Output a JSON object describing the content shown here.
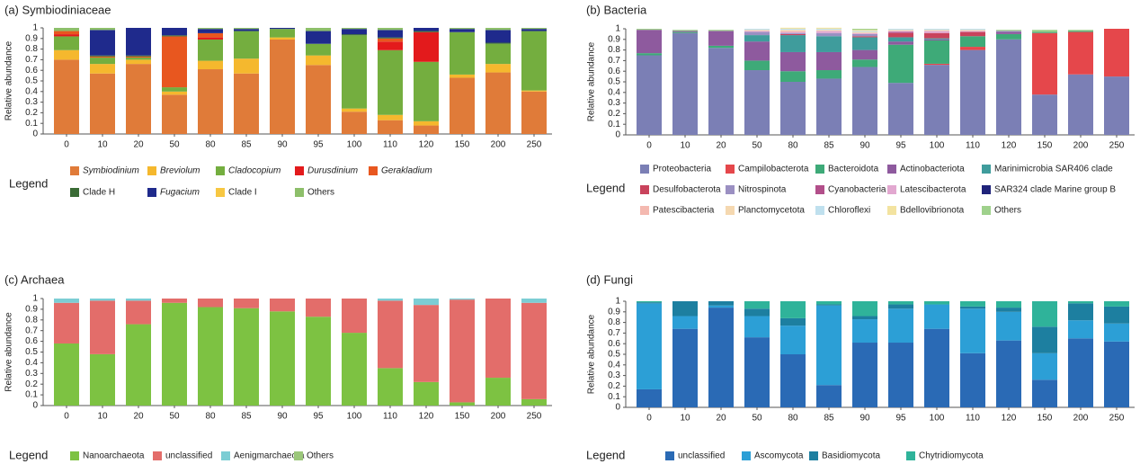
{
  "chart_data": [
    {
      "type": "bar",
      "stacked": true,
      "title": "(a) Symbiodiniaceae",
      "y_label": "Relative abundance",
      "legend_title": "Legend",
      "categories": [
        "0",
        "10",
        "20",
        "50",
        "80",
        "85",
        "90",
        "95",
        "100",
        "110",
        "120",
        "150",
        "200",
        "250"
      ],
      "ylim": [
        0,
        1
      ],
      "yticks": [
        0,
        0.1,
        0.2,
        0.3,
        0.4,
        0.5,
        0.6,
        0.7,
        0.8,
        0.9,
        1
      ],
      "series": [
        {
          "name": "Symbiodinium",
          "italic": true,
          "color": "#e07b39",
          "values": [
            0.7,
            0.57,
            0.66,
            0.37,
            0.61,
            0.57,
            0.89,
            0.65,
            0.21,
            0.13,
            0.08,
            0.53,
            0.58,
            0.4
          ]
        },
        {
          "name": "Breviolum",
          "italic": true,
          "color": "#f5b82e",
          "values": [
            0.09,
            0.09,
            0.04,
            0.03,
            0.08,
            0.14,
            0.02,
            0.09,
            0.03,
            0.05,
            0.04,
            0.03,
            0.08,
            0.01
          ]
        },
        {
          "name": "Cladocopium",
          "italic": true,
          "color": "#74ae3f",
          "values": [
            0.13,
            0.06,
            0.02,
            0.04,
            0.2,
            0.26,
            0.08,
            0.11,
            0.69,
            0.61,
            0.56,
            0.4,
            0.19,
            0.56
          ]
        },
        {
          "name": "Durusdinium",
          "italic": true,
          "color": "#e31a1c",
          "values": [
            0.02,
            0,
            0,
            0,
            0.02,
            0,
            0,
            0,
            0,
            0.08,
            0.28,
            0,
            0,
            0
          ]
        },
        {
          "name": "Gerakladium",
          "italic": true,
          "color": "#e8571f",
          "values": [
            0.03,
            0.01,
            0.01,
            0.48,
            0.04,
            0,
            0,
            0,
            0,
            0.03,
            0,
            0,
            0,
            0
          ]
        },
        {
          "name": "Clade H",
          "italic": false,
          "color": "#3a6b35",
          "values": [
            0,
            0.01,
            0.01,
            0.01,
            0,
            0,
            0,
            0,
            0.01,
            0.01,
            0.01,
            0,
            0.01,
            0
          ]
        },
        {
          "name": "Fugacium",
          "italic": true,
          "color": "#1f2a8c",
          "values": [
            0,
            0.24,
            0.26,
            0.07,
            0.04,
            0.02,
            0.01,
            0.12,
            0.05,
            0.07,
            0.03,
            0.03,
            0.12,
            0.02
          ]
        },
        {
          "name": "Clade I",
          "italic": false,
          "color": "#f7c742",
          "values": [
            0,
            0,
            0,
            0,
            0,
            0,
            0,
            0,
            0,
            0,
            0,
            0,
            0,
            0
          ]
        },
        {
          "name": "Others",
          "italic": false,
          "color": "#8dbf6a",
          "values": [
            0.03,
            0.02,
            0,
            0,
            0.01,
            0.01,
            0,
            0.03,
            0.01,
            0.02,
            0,
            0.01,
            0.02,
            0.01
          ]
        }
      ]
    },
    {
      "type": "bar",
      "stacked": true,
      "title": "(b) Bacteria",
      "y_label": "Relative abundance",
      "legend_title": "Legend",
      "categories": [
        "0",
        "10",
        "20",
        "50",
        "80",
        "85",
        "90",
        "95",
        "100",
        "110",
        "120",
        "150",
        "200",
        "250"
      ],
      "ylim": [
        0,
        1
      ],
      "yticks": [
        0,
        0.1,
        0.2,
        0.3,
        0.4,
        0.5,
        0.6,
        0.7,
        0.8,
        0.9,
        1
      ],
      "series": [
        {
          "name": "Proteobacteria",
          "color": "#7b7fb5",
          "values": [
            0.75,
            0.96,
            0.82,
            0.61,
            0.5,
            0.53,
            0.64,
            0.49,
            0.66,
            0.8,
            0.9,
            0.38,
            0.57,
            0.55
          ]
        },
        {
          "name": "Campilobacterota",
          "color": "#e5474b",
          "values": [
            0,
            0,
            0,
            0,
            0,
            0,
            0,
            0,
            0.01,
            0.03,
            0,
            0.58,
            0.4,
            0.45
          ]
        },
        {
          "name": "Bacteroidota",
          "color": "#3eaa78",
          "values": [
            0.02,
            0.01,
            0.02,
            0.09,
            0.1,
            0.08,
            0.07,
            0.36,
            0.22,
            0.1,
            0.05,
            0.01,
            0.01,
            0
          ]
        },
        {
          "name": "Actinobacteriota",
          "color": "#8e5a9e",
          "values": [
            0.22,
            0.01,
            0.14,
            0.18,
            0.18,
            0.17,
            0.09,
            0.03,
            0.01,
            0,
            0.02,
            0,
            0,
            0
          ]
        },
        {
          "name": "Marinimicrobia SAR406 clade",
          "color": "#3f9c9c",
          "values": [
            0,
            0,
            0,
            0.06,
            0.16,
            0.15,
            0.12,
            0.04,
            0.01,
            0,
            0,
            0,
            0,
            0
          ]
        },
        {
          "name": "Desulfobacterota",
          "color": "#c9435c",
          "values": [
            0,
            0,
            0,
            0,
            0.01,
            0,
            0.01,
            0.04,
            0.05,
            0.04,
            0,
            0,
            0,
            0
          ]
        },
        {
          "name": "Nitrospinota",
          "color": "#9b90c2",
          "values": [
            0,
            0,
            0,
            0.03,
            0.01,
            0.03,
            0.02,
            0,
            0,
            0,
            0.01,
            0,
            0,
            0
          ]
        },
        {
          "name": "Cyanobacteria",
          "color": "#b24f8a",
          "values": [
            0,
            0,
            0,
            0,
            0,
            0,
            0,
            0.01,
            0,
            0,
            0,
            0,
            0,
            0
          ]
        },
        {
          "name": "Latescibacterota",
          "color": "#e2a8d0",
          "values": [
            0,
            0,
            0,
            0.01,
            0.01,
            0.02,
            0.01,
            0.01,
            0.02,
            0.01,
            0,
            0,
            0,
            0
          ]
        },
        {
          "name": "SAR324 clade Marine group B",
          "color": "#1f237a",
          "values": [
            0,
            0,
            0,
            0,
            0,
            0,
            0,
            0,
            0,
            0,
            0,
            0,
            0,
            0
          ]
        },
        {
          "name": "Patescibacteria",
          "color": "#f4b9b0",
          "values": [
            0,
            0,
            0,
            0,
            0.01,
            0,
            0,
            0,
            0,
            0,
            0,
            0,
            0,
            0
          ]
        },
        {
          "name": "Planctomycetota",
          "color": "#f5d8b0",
          "values": [
            0,
            0,
            0,
            0.01,
            0.01,
            0.01,
            0.01,
            0.01,
            0.01,
            0.01,
            0,
            0,
            0,
            0
          ]
        },
        {
          "name": "Chloroflexi",
          "color": "#bfe0ee",
          "values": [
            0,
            0,
            0,
            0.01,
            0.01,
            0.01,
            0.01,
            0.01,
            0.01,
            0.01,
            0,
            0,
            0,
            0
          ]
        },
        {
          "name": "Bdellovibrionota",
          "color": "#f3e3a0",
          "values": [
            0,
            0,
            0,
            0,
            0.01,
            0.01,
            0.01,
            0,
            0,
            0,
            0,
            0,
            0,
            0
          ]
        },
        {
          "name": "Others",
          "color": "#9fd18c",
          "values": [
            0.01,
            0.01,
            0.01,
            0,
            0,
            0,
            0.01,
            0,
            0,
            0,
            0.01,
            0.02,
            0.01,
            0
          ]
        }
      ]
    },
    {
      "type": "bar",
      "stacked": true,
      "title": "(c) Archaea",
      "y_label": "Relative abundance",
      "legend_title": "Legend",
      "categories": [
        "0",
        "10",
        "20",
        "50",
        "80",
        "85",
        "90",
        "95",
        "100",
        "110",
        "120",
        "150",
        "200",
        "250"
      ],
      "ylim": [
        0,
        1
      ],
      "yticks": [
        0,
        0.1,
        0.2,
        0.3,
        0.4,
        0.5,
        0.6,
        0.7,
        0.8,
        0.9,
        1
      ],
      "series": [
        {
          "name": "Nanoarchaeota",
          "color": "#7dc242",
          "values": [
            0.58,
            0.48,
            0.76,
            0.96,
            0.92,
            0.91,
            0.88,
            0.83,
            0.68,
            0.35,
            0.22,
            0.03,
            0.26,
            0.06
          ]
        },
        {
          "name": "unclassified",
          "color": "#e36d6a",
          "values": [
            0.38,
            0.5,
            0.22,
            0.04,
            0.08,
            0.09,
            0.12,
            0.17,
            0.32,
            0.63,
            0.72,
            0.96,
            0.74,
            0.9
          ]
        },
        {
          "name": "Aenigmarchaeota",
          "color": "#7ccdd4",
          "values": [
            0.04,
            0.02,
            0.02,
            0,
            0,
            0,
            0,
            0,
            0,
            0.02,
            0.06,
            0.01,
            0,
            0.04
          ]
        },
        {
          "name": "Others",
          "color": "#9bc77a",
          "values": [
            0,
            0,
            0,
            0,
            0,
            0,
            0,
            0,
            0,
            0,
            0,
            0,
            0,
            0
          ]
        }
      ]
    },
    {
      "type": "bar",
      "stacked": true,
      "title": "(d) Fungi",
      "y_label": "Relative abundance",
      "legend_title": "Legend",
      "categories": [
        "0",
        "10",
        "20",
        "50",
        "80",
        "85",
        "90",
        "95",
        "100",
        "110",
        "120",
        "150",
        "200",
        "250"
      ],
      "ylim": [
        0,
        1
      ],
      "yticks": [
        0,
        0.1,
        0.2,
        0.3,
        0.4,
        0.5,
        0.6,
        0.7,
        0.8,
        0.9,
        1
      ],
      "series": [
        {
          "name": "unclassified",
          "color": "#2a6ab5",
          "values": [
            0.17,
            0.74,
            0.94,
            0.66,
            0.5,
            0.21,
            0.61,
            0.61,
            0.74,
            0.51,
            0.63,
            0.26,
            0.65,
            0.62
          ]
        },
        {
          "name": "Ascomycota",
          "color": "#2c9fd6",
          "values": [
            0.81,
            0.12,
            0.02,
            0.2,
            0.27,
            0.75,
            0.22,
            0.32,
            0.23,
            0.42,
            0.27,
            0.25,
            0.17,
            0.17
          ]
        },
        {
          "name": "Basidiomycota",
          "color": "#1d7fa0",
          "values": [
            0.01,
            0.14,
            0.04,
            0.07,
            0.07,
            0.01,
            0.03,
            0.04,
            0,
            0.02,
            0.04,
            0.25,
            0.16,
            0.16
          ]
        },
        {
          "name": "Chytridiomycota",
          "color": "#2fb39a",
          "values": [
            0.01,
            0,
            0,
            0.07,
            0.16,
            0.03,
            0.14,
            0.03,
            0.03,
            0.05,
            0.06,
            0.24,
            0.02,
            0.05
          ]
        }
      ]
    }
  ]
}
